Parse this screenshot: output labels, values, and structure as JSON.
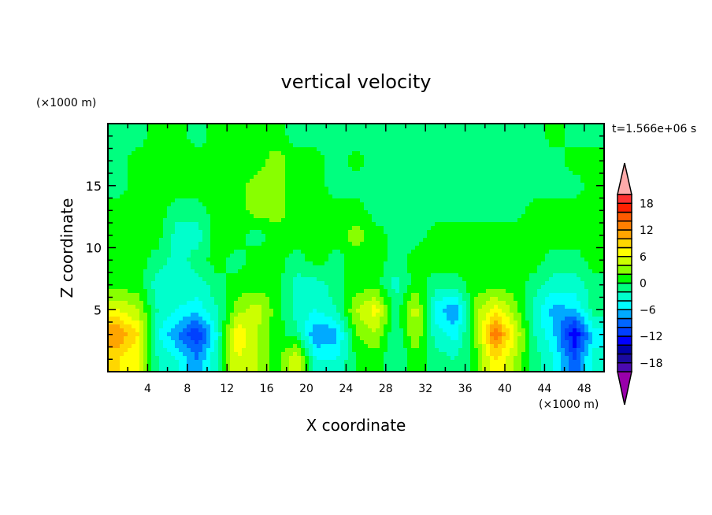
{
  "chart_data": {
    "type": "heatmap",
    "title": "vertical velocity",
    "xlabel": "X coordinate",
    "ylabel": "Z coordinate",
    "x_unit_label": "(×1000 m)",
    "y_unit_label": "(×1000 m)",
    "time_label": "t=1.566e+06 s",
    "xlim": [
      0,
      50
    ],
    "ylim": [
      0,
      20
    ],
    "x_ticks": [
      4,
      8,
      12,
      16,
      20,
      24,
      28,
      32,
      36,
      40,
      44,
      48
    ],
    "x_minor_step": 2,
    "y_ticks": [
      5,
      10,
      15
    ],
    "y_minor_step": 1,
    "grid": false,
    "legend_position": "right",
    "grid_x": [
      1,
      3,
      5,
      7,
      9,
      11,
      13,
      15,
      17,
      19,
      21,
      23,
      25,
      27,
      29,
      31,
      33,
      35,
      37,
      39,
      41,
      43,
      45,
      47,
      49
    ],
    "grid_z": [
      19,
      17,
      15,
      13,
      11,
      9,
      7,
      5,
      3,
      1
    ],
    "values": [
      [
        -1,
        -1,
        1,
        1,
        -1,
        1,
        1,
        1,
        1,
        -1,
        -1,
        -1,
        -1,
        -1,
        -1,
        -1,
        -1,
        -1,
        -1,
        -1,
        -1,
        -1,
        1,
        -1,
        -1
      ],
      [
        -1,
        1,
        1,
        1,
        1,
        1,
        1,
        1,
        3,
        1,
        1,
        -1,
        1,
        -1,
        -1,
        -1,
        -1,
        -1,
        -1,
        -1,
        -1,
        -1,
        -1,
        1,
        1
      ],
      [
        -1,
        1,
        1,
        1,
        1,
        1,
        1,
        3,
        3,
        1,
        1,
        -1,
        -1,
        -1,
        -1,
        -1,
        -1,
        -1,
        -1,
        -1,
        -1,
        -1,
        -1,
        -1,
        1
      ],
      [
        1,
        1,
        1,
        -1,
        -1,
        1,
        1,
        3,
        3,
        1,
        1,
        1,
        1,
        -1,
        -1,
        -1,
        -1,
        -1,
        -1,
        -1,
        -1,
        1,
        1,
        1,
        1
      ],
      [
        1,
        1,
        1,
        -3,
        -3,
        1,
        1,
        -1,
        1,
        1,
        1,
        1,
        3,
        1,
        -1,
        -1,
        1,
        1,
        1,
        1,
        1,
        1,
        1,
        1,
        1
      ],
      [
        1,
        1,
        -1,
        -3,
        -1,
        1,
        -1,
        1,
        1,
        -1,
        1,
        -1,
        1,
        1,
        -1,
        1,
        1,
        1,
        1,
        1,
        1,
        1,
        -1,
        -1,
        1
      ],
      [
        1,
        1,
        -3,
        -3,
        -3,
        -1,
        1,
        1,
        1,
        -3,
        -3,
        -1,
        1,
        1,
        -3,
        1,
        -1,
        -1,
        1,
        1,
        1,
        -1,
        -3,
        -3,
        -1
      ],
      [
        6,
        4,
        -2,
        -4,
        -5,
        -2,
        3,
        5,
        1,
        -3,
        -4,
        -2,
        4,
        7,
        -1,
        5,
        -5,
        -8,
        3,
        7,
        3,
        -3,
        -7,
        -6,
        -1
      ],
      [
        12,
        8,
        -4,
        -8,
        -12,
        -4,
        8,
        4,
        1,
        -1,
        -8,
        -7,
        2,
        4,
        -2,
        4,
        -3,
        -5,
        2,
        14,
        6,
        -2,
        -6,
        -14,
        -5
      ],
      [
        8,
        6,
        -2,
        -4,
        -8,
        -2,
        6,
        4,
        1,
        6,
        -4,
        -4,
        0,
        1,
        -2,
        1,
        -1,
        -2,
        1,
        8,
        4,
        -1,
        -4,
        -10,
        -3
      ]
    ],
    "colorbar": {
      "min": -20,
      "max": 20,
      "step": 2,
      "tick_labels": [
        "18",
        "12",
        "6",
        "0",
        "-6",
        "-12",
        "-18"
      ],
      "tick_values": [
        18,
        12,
        6,
        0,
        -6,
        -12,
        -18
      ],
      "colors": [
        "#4b0ab0",
        "#1a0aa0",
        "#0000aa",
        "#0000ff",
        "#0040ff",
        "#0066ff",
        "#00aaff",
        "#00ffff",
        "#00ffcc",
        "#00ff7f",
        "#00ff00",
        "#88ff00",
        "#ccff00",
        "#ffff00",
        "#ffd700",
        "#ffa500",
        "#ff7f00",
        "#ff5a00",
        "#ff2000",
        "#ff3030"
      ],
      "over_color": "#ffaaaa",
      "under_color": "#9900aa"
    }
  }
}
